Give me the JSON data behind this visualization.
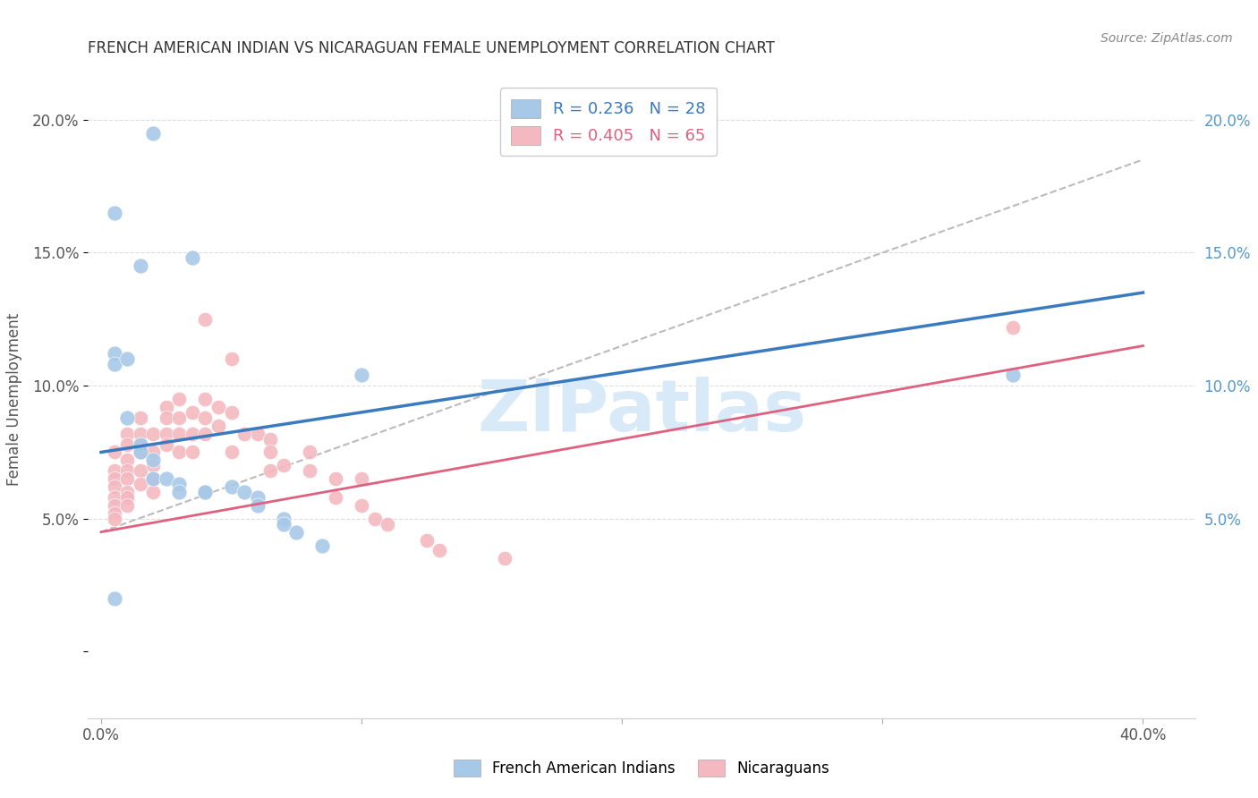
{
  "title": "FRENCH AMERICAN INDIAN VS NICARAGUAN FEMALE UNEMPLOYMENT CORRELATION CHART",
  "source": "Source: ZipAtlas.com",
  "ylabel": "Female Unemployment",
  "yticks": [
    0.0,
    0.05,
    0.1,
    0.15,
    0.2
  ],
  "ytick_labels_left": [
    "",
    "5.0%",
    "10.0%",
    "15.0%",
    "20.0%"
  ],
  "ytick_labels_right": [
    "",
    "5.0%",
    "10.0%",
    "15.0%",
    "20.0%"
  ],
  "xtick_positions": [
    0.0,
    0.1,
    0.2,
    0.3,
    0.4
  ],
  "xtick_labels": [
    "0.0%",
    "",
    "",
    "",
    "40.0%"
  ],
  "xlim": [
    -0.005,
    0.42
  ],
  "ylim": [
    -0.025,
    0.215
  ],
  "blue_color": "#a8c8e8",
  "pink_color": "#f4b8c0",
  "blue_line_color": "#3a7abf",
  "pink_line_color": "#e06080",
  "dashed_line_color": "#bbbbbb",
  "watermark_color": "#d8eaf8",
  "blue_scatter_x": [
    0.02,
    0.005,
    0.035,
    0.015,
    0.005,
    0.005,
    0.005,
    0.01,
    0.01,
    0.015,
    0.015,
    0.02,
    0.02,
    0.025,
    0.03,
    0.03,
    0.04,
    0.04,
    0.05,
    0.055,
    0.06,
    0.06,
    0.07,
    0.07,
    0.075,
    0.085,
    0.1,
    0.35
  ],
  "blue_scatter_y": [
    0.195,
    0.165,
    0.148,
    0.145,
    0.112,
    0.108,
    0.02,
    0.11,
    0.088,
    0.078,
    0.075,
    0.072,
    0.065,
    0.065,
    0.063,
    0.06,
    0.06,
    0.06,
    0.062,
    0.06,
    0.058,
    0.055,
    0.05,
    0.048,
    0.045,
    0.04,
    0.104,
    0.104
  ],
  "pink_scatter_x": [
    0.005,
    0.005,
    0.005,
    0.005,
    0.005,
    0.005,
    0.005,
    0.005,
    0.01,
    0.01,
    0.01,
    0.01,
    0.01,
    0.01,
    0.01,
    0.01,
    0.015,
    0.015,
    0.015,
    0.015,
    0.015,
    0.015,
    0.02,
    0.02,
    0.02,
    0.02,
    0.02,
    0.025,
    0.025,
    0.025,
    0.025,
    0.03,
    0.03,
    0.03,
    0.03,
    0.035,
    0.035,
    0.035,
    0.04,
    0.04,
    0.04,
    0.04,
    0.045,
    0.045,
    0.05,
    0.05,
    0.05,
    0.055,
    0.06,
    0.065,
    0.065,
    0.065,
    0.07,
    0.08,
    0.08,
    0.09,
    0.09,
    0.1,
    0.1,
    0.105,
    0.11,
    0.125,
    0.13,
    0.155,
    0.35
  ],
  "pink_scatter_y": [
    0.075,
    0.068,
    0.065,
    0.062,
    0.058,
    0.055,
    0.052,
    0.05,
    0.082,
    0.078,
    0.072,
    0.068,
    0.065,
    0.06,
    0.058,
    0.055,
    0.088,
    0.082,
    0.078,
    0.075,
    0.068,
    0.063,
    0.082,
    0.075,
    0.07,
    0.065,
    0.06,
    0.092,
    0.088,
    0.082,
    0.078,
    0.095,
    0.088,
    0.082,
    0.075,
    0.09,
    0.082,
    0.075,
    0.125,
    0.095,
    0.088,
    0.082,
    0.092,
    0.085,
    0.11,
    0.09,
    0.075,
    0.082,
    0.082,
    0.08,
    0.075,
    0.068,
    0.07,
    0.075,
    0.068,
    0.065,
    0.058,
    0.065,
    0.055,
    0.05,
    0.048,
    0.042,
    0.038,
    0.035,
    0.122
  ],
  "blue_line_x": [
    0.0,
    0.4
  ],
  "blue_line_y": [
    0.075,
    0.135
  ],
  "pink_line_x": [
    0.0,
    0.4
  ],
  "pink_line_y": [
    0.045,
    0.115
  ],
  "dashed_line_x": [
    0.0,
    0.4
  ],
  "dashed_line_y": [
    0.045,
    0.185
  ]
}
